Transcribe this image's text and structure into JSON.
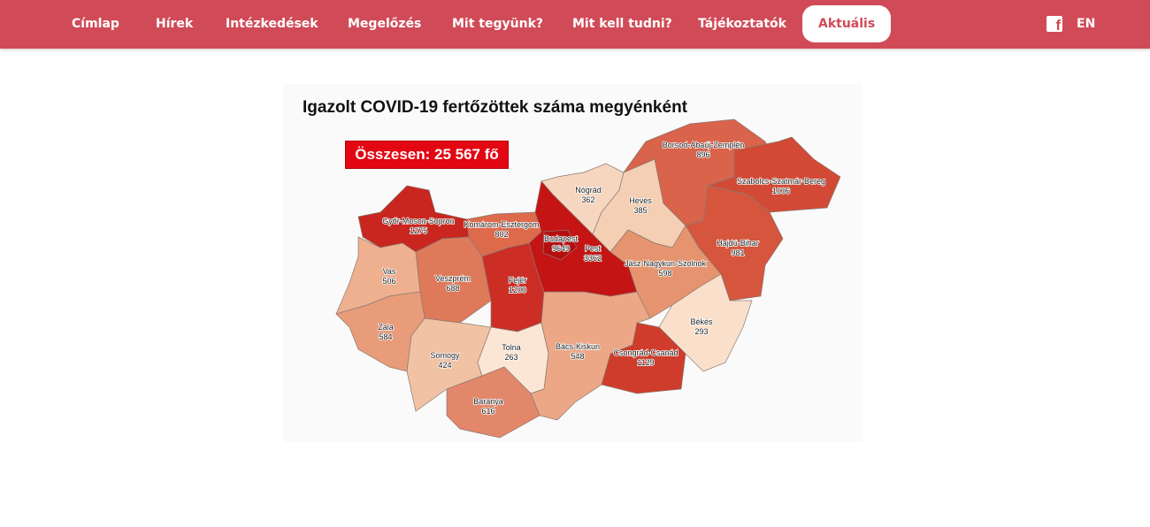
{
  "nav": {
    "items": [
      {
        "label": "Címlap"
      },
      {
        "label": "Hírek"
      },
      {
        "label": "Intézkedések"
      },
      {
        "label": "Megelőzés"
      },
      {
        "label": "Mit tegyünk?"
      },
      {
        "label": "Mit kell tudni?"
      },
      {
        "label": "Tájékoztatók"
      },
      {
        "label": "Aktuális",
        "active": true
      }
    ],
    "facebook_icon": "facebook-icon",
    "language": "EN",
    "color": "#d04b57"
  },
  "map": {
    "title": "Igazolt COVID-19 fertőzöttek száma megyénként",
    "total": "Összesen: 25 567 fő",
    "counties": [
      {
        "name": "Győr-Moson-Sopron",
        "value": 1275,
        "color": "#c9261f"
      },
      {
        "name": "Komárom-Esztergom",
        "value": 802,
        "color": "#de6a4c"
      },
      {
        "name": "Vas",
        "value": 506,
        "color": "#eeb08f"
      },
      {
        "name": "Veszprém",
        "value": 688,
        "color": "#de7a5a"
      },
      {
        "name": "Fejér",
        "value": 1200,
        "color": "#cc2d25"
      },
      {
        "name": "Zala",
        "value": 584,
        "color": "#e99c7a"
      },
      {
        "name": "Somogy",
        "value": 424,
        "color": "#f1c2a3"
      },
      {
        "name": "Tolna",
        "value": 263,
        "color": "#fbe6d5"
      },
      {
        "name": "Baranya",
        "value": 616,
        "color": "#e3876a"
      },
      {
        "name": "Pest",
        "value": 3362,
        "color": "#c41414"
      },
      {
        "name": "Budapest",
        "value": 9649,
        "color": "#b50e0e"
      },
      {
        "name": "Nógrád",
        "value": 362,
        "color": "#f6d6bf"
      },
      {
        "name": "Heves",
        "value": 385,
        "color": "#f4cfb3"
      },
      {
        "name": "Borsod-Abaúj-Zemplén",
        "value": 896,
        "color": "#d9634b"
      },
      {
        "name": "Szabolcs-Szatmár-Bereg",
        "value": 1006,
        "color": "#d24a36"
      },
      {
        "name": "Hajdú-Bihar",
        "value": 981,
        "color": "#d5553d"
      },
      {
        "name": "Jász-Nagykun-Szolnok",
        "value": 598,
        "color": "#e6946f"
      },
      {
        "name": "Békés",
        "value": 293,
        "color": "#fae0cb"
      },
      {
        "name": "Csongrád-Csanád",
        "value": 1129,
        "color": "#cf3c2b"
      },
      {
        "name": "Bács-Kiskun",
        "value": 548,
        "color": "#eba786"
      }
    ]
  }
}
